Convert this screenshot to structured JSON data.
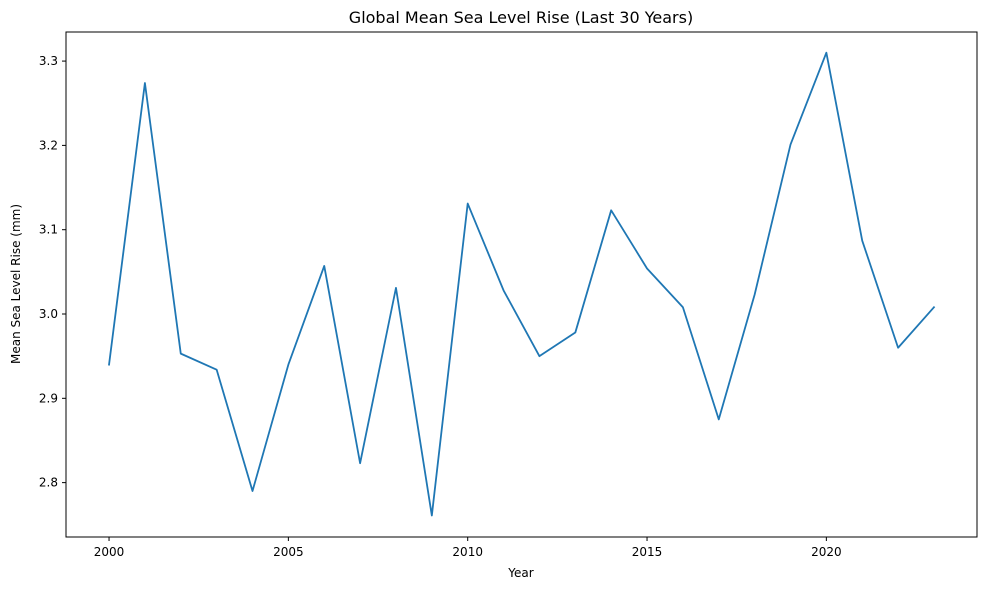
{
  "chart_data": {
    "type": "line",
    "title": "Global Mean Sea Level Rise (Last 30 Years)",
    "xlabel": "Year",
    "ylabel": "Mean Sea Level Rise (mm)",
    "xlim": [
      1998.8,
      2024.2
    ],
    "ylim": [
      2.7355,
      3.3345
    ],
    "xticks": [
      2000,
      2005,
      2010,
      2015,
      2020
    ],
    "yticks": [
      2.8,
      2.9,
      3.0,
      3.1,
      3.2,
      3.3
    ],
    "grid": false,
    "series": [
      {
        "color": "#1f77b4",
        "x": [
          2000,
          2001,
          2002,
          2003,
          2004,
          2005,
          2006,
          2007,
          2008,
          2009,
          2010,
          2011,
          2012,
          2013,
          2014,
          2015,
          2016,
          2017,
          2018,
          2019,
          2020,
          2021,
          2022,
          2023
        ],
        "y": [
          2.94,
          3.274,
          2.953,
          2.934,
          2.79,
          2.94,
          3.057,
          2.823,
          3.031,
          2.761,
          3.131,
          3.028,
          2.95,
          2.978,
          3.123,
          3.054,
          3.008,
          2.875,
          3.023,
          3.201,
          3.31,
          3.087,
          2.96,
          3.008
        ]
      }
    ]
  }
}
